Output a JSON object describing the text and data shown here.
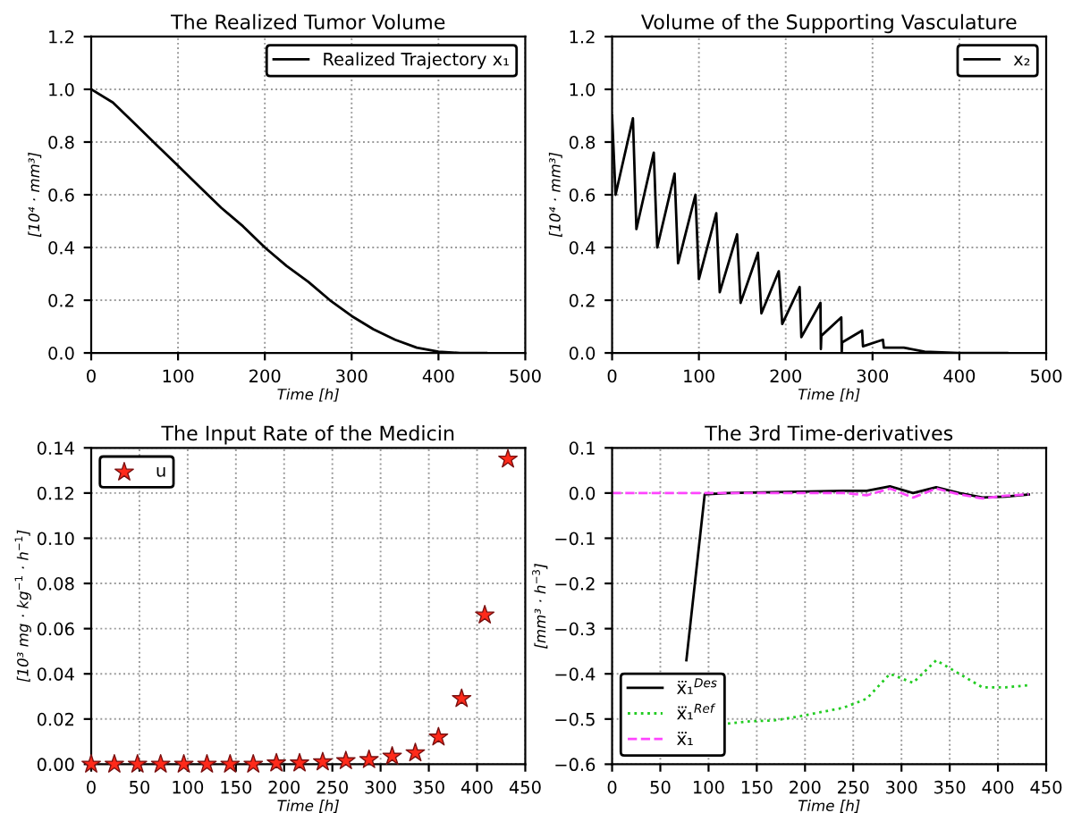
{
  "chart_data": [
    {
      "type": "line",
      "title": "The Realized Tumor Volume",
      "xlabel": "Time [h]",
      "ylabel": "[10⁴ · mm³]",
      "xlim": [
        0,
        500
      ],
      "xticks": [
        0,
        100,
        200,
        300,
        400,
        500
      ],
      "ylim": [
        0,
        1.2
      ],
      "yticks": [
        {
          "value": 0,
          "label": "0.0"
        },
        0.2,
        0.4,
        0.6,
        0.8,
        {
          "value": 1,
          "label": "1.0"
        },
        1.2
      ],
      "grid": true,
      "legend": "top right",
      "series": [
        {
          "name": "Realized Trajectory x₁",
          "color": "#000000",
          "line_style": "solid",
          "x": [
            0,
            25,
            50,
            75,
            100,
            125,
            150,
            175,
            200,
            225,
            250,
            275,
            300,
            325,
            350,
            375,
            400,
            425,
            455
          ],
          "values": [
            1.0,
            0.95,
            0.87,
            0.79,
            0.71,
            0.63,
            0.55,
            0.48,
            0.4,
            0.33,
            0.27,
            0.2,
            0.14,
            0.09,
            0.05,
            0.02,
            0.005,
            0.0,
            0.0
          ]
        }
      ]
    },
    {
      "type": "line",
      "title": "Volume of the Supporting Vasculature",
      "xlabel": "Time [h]",
      "ylabel": "[10⁴ · mm³]",
      "xlim": [
        0,
        500
      ],
      "xticks": [
        0,
        100,
        200,
        300,
        400,
        500
      ],
      "ylim": [
        0,
        1.2
      ],
      "yticks": [
        {
          "value": 0,
          "label": "0.0"
        },
        0.2,
        0.4,
        0.6,
        0.8,
        {
          "value": 1,
          "label": "1.0"
        },
        1.2
      ],
      "grid": true,
      "legend": "top right",
      "series": [
        {
          "name": "x₂",
          "color": "#000000",
          "line_style": "solid",
          "x": [
            0,
            4,
            24,
            28,
            48,
            52,
            72,
            76,
            96,
            100,
            120,
            124,
            144,
            148,
            168,
            172,
            192,
            196,
            216,
            218,
            240,
            240.5,
            241,
            264,
            264.5,
            265,
            288,
            289,
            312,
            313,
            336,
            360,
            400,
            455
          ],
          "values": [
            0.9,
            0.6,
            0.89,
            0.47,
            0.76,
            0.4,
            0.68,
            0.34,
            0.6,
            0.28,
            0.53,
            0.23,
            0.45,
            0.19,
            0.38,
            0.15,
            0.31,
            0.11,
            0.25,
            0.06,
            0.19,
            0.015,
            0.065,
            0.135,
            0.0,
            0.04,
            0.085,
            0.025,
            0.05,
            0.02,
            0.02,
            0.005,
            0.0,
            0.0
          ]
        }
      ]
    },
    {
      "type": "scatter",
      "title": "The Input Rate of the Medicin",
      "xlabel": "Time [h]",
      "ylabel": "[10³ mg · kg$^{−1}$ · h$^{−1}$]",
      "xlim": [
        0,
        450
      ],
      "xticks": [
        0,
        50,
        100,
        150,
        200,
        250,
        300,
        350,
        400,
        450
      ],
      "ylim": [
        0,
        0.14
      ],
      "yticks": [
        {
          "value": 0,
          "label": "0.00"
        },
        0.02,
        0.04,
        0.06,
        0.08,
        {
          "value": 0.1,
          "label": "0.10"
        },
        0.12,
        0.14
      ],
      "grid": true,
      "legend": "top left",
      "marker": "star",
      "series": [
        {
          "name": "u",
          "color": "#ff2a1a",
          "x": [
            0,
            24,
            48,
            72,
            96,
            120,
            144,
            168,
            192,
            216,
            240,
            264,
            288,
            312,
            336,
            360,
            384,
            408,
            432
          ],
          "values": [
            0,
            0,
            0,
            0,
            0,
            0,
            0,
            0,
            0.0005,
            0.0005,
            0.001,
            0.0015,
            0.002,
            0.0035,
            0.005,
            0.012,
            0.029,
            0.066,
            0.135
          ]
        }
      ]
    },
    {
      "type": "line",
      "title": "The 3rd Time-derivatives",
      "xlabel": "Time [h]",
      "ylabel": "[mm³ · h$^{−3}$]",
      "xlim": [
        0,
        450
      ],
      "xticks": [
        0,
        50,
        100,
        150,
        200,
        250,
        300,
        350,
        400,
        450
      ],
      "ylim": [
        -0.6,
        0.1
      ],
      "yticks": [
        {
          "value": -0.6,
          "label": "−0.6"
        },
        {
          "value": -0.5,
          "label": "−0.5"
        },
        {
          "value": -0.4,
          "label": "−0.4"
        },
        {
          "value": -0.3,
          "label": "−0.3"
        },
        {
          "value": -0.2,
          "label": "−0.2"
        },
        {
          "value": -0.1,
          "label": "−0.1"
        },
        {
          "value": 0,
          "label": "0.0"
        },
        0.1
      ],
      "grid": true,
      "legend": "bottom left",
      "series": [
        {
          "name": "x⃛₁$^{Des}$",
          "color": "#000000",
          "line_style": "solid",
          "x": [
            77,
            96,
            120,
            144,
            168,
            192,
            216,
            240,
            264,
            288,
            312,
            336,
            360,
            384,
            408,
            432
          ],
          "values": [
            -0.37,
            -0.003,
            0.0,
            0.001,
            0.002,
            0.003,
            0.004,
            0.005,
            0.005,
            0.015,
            0.0,
            0.013,
            0.0,
            -0.01,
            -0.008,
            -0.003
          ]
        },
        {
          "name": "x⃛₁$^{Ref}$",
          "color": "#22cc22",
          "line_style": "dotted",
          "x": [
            120,
            144,
            168,
            192,
            216,
            240,
            264,
            288,
            312,
            336,
            360,
            384,
            408,
            432
          ],
          "values": [
            -0.51,
            -0.505,
            -0.503,
            -0.495,
            -0.485,
            -0.475,
            -0.455,
            -0.4,
            -0.42,
            -0.37,
            -0.4,
            -0.43,
            -0.43,
            -0.425
          ]
        },
        {
          "name": "x⃛₁",
          "color": "#ff44ff",
          "line_style": "dashed",
          "x": [
            0,
            24,
            48,
            72,
            96,
            120,
            144,
            168,
            192,
            216,
            240,
            264,
            288,
            312,
            336,
            360,
            384,
            408,
            432
          ],
          "values": [
            0,
            0,
            0,
            0,
            0,
            0,
            0,
            0,
            0,
            0,
            0,
            -0.005,
            0.01,
            -0.01,
            0.01,
            -0.003,
            -0.012,
            -0.006,
            -0.003
          ]
        }
      ]
    }
  ]
}
